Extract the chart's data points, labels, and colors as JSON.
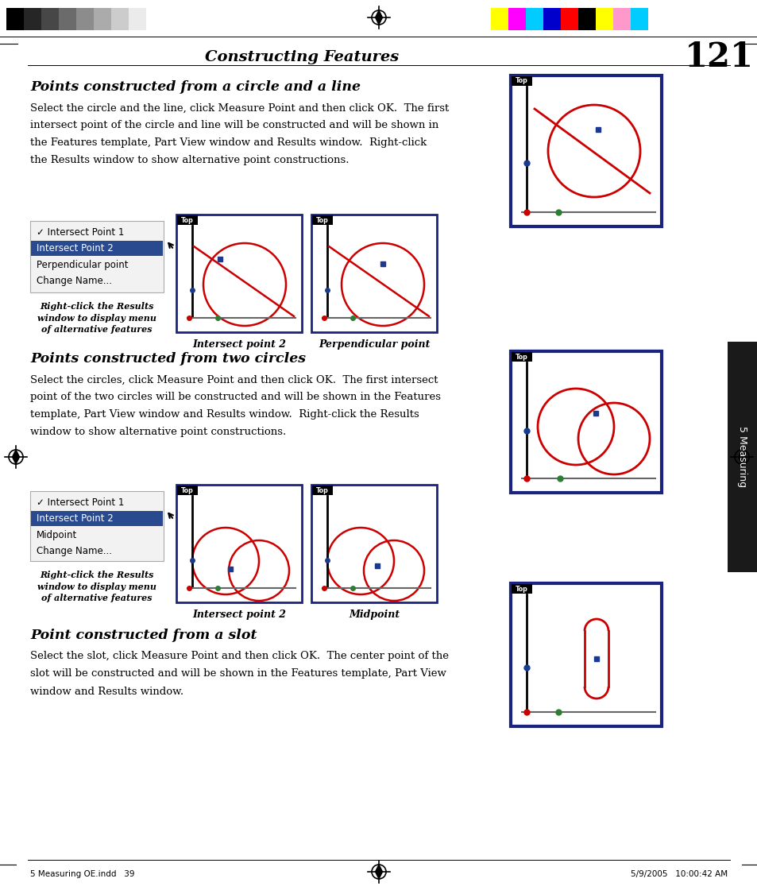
{
  "page_title": "Constructing Features",
  "page_number": "121",
  "bg_color": "#ffffff",
  "section1_title": "Points constructed from a circle and a line",
  "section1_body_lines": [
    "Select the circle and the line, click Measure Point and then click OK.  The first",
    "intersect point of the circle and line will be constructed and will be shown in",
    "the Features template, Part View window and Results window.  Right-click",
    "the Results window to show alternative point constructions."
  ],
  "menu1_items": [
    "✓ Intersect Point 1",
    "Intersect Point 2",
    "Perpendicular point",
    "Change Name..."
  ],
  "caption1a": "Intersect point 2",
  "caption1b": "Perpendicular point",
  "right_click_caption": "Right-click the Results\nwindow to display menu\nof alternative features",
  "section2_title": "Points constructed from two circles",
  "section2_body_lines": [
    "Select the circles, click Measure Point and then click OK.  The first intersect",
    "point of the two circles will be constructed and will be shown in the Features",
    "template, Part View window and Results window.  Right-click the Results",
    "window to show alternative point constructions."
  ],
  "menu2_items": [
    "✓ Intersect Point 1",
    "Intersect Point 2",
    "Midpoint",
    "Change Name..."
  ],
  "caption2a": "Intersect point 2",
  "caption2b": "Midpoint",
  "section3_title": "Point constructed from a slot",
  "section3_body_lines": [
    "Select the slot, click Measure Point and then click OK.  The center point of the",
    "slot will be constructed and will be shown in the Features template, Part View",
    "window and Results window."
  ],
  "dark_blue": "#1a237e",
  "red": "#cc0000",
  "blue_dot": "#1a3a8f",
  "green_dot": "#2e7d32",
  "red_dot": "#cc0000",
  "menu_selected_bg": "#2a4a8f",
  "gray_line": "#888888",
  "side_tab_color": "#1a1a1a",
  "gray_calibration": [
    0.0,
    0.15,
    0.28,
    0.42,
    0.55,
    0.67,
    0.8,
    0.92,
    1.0
  ],
  "color_calibration": [
    "#FFFF00",
    "#FF00FF",
    "#00CCFF",
    "#0000CC",
    "#FF0000",
    "#000000",
    "#FFFF00",
    "#FF99CC",
    "#00CCFF"
  ]
}
